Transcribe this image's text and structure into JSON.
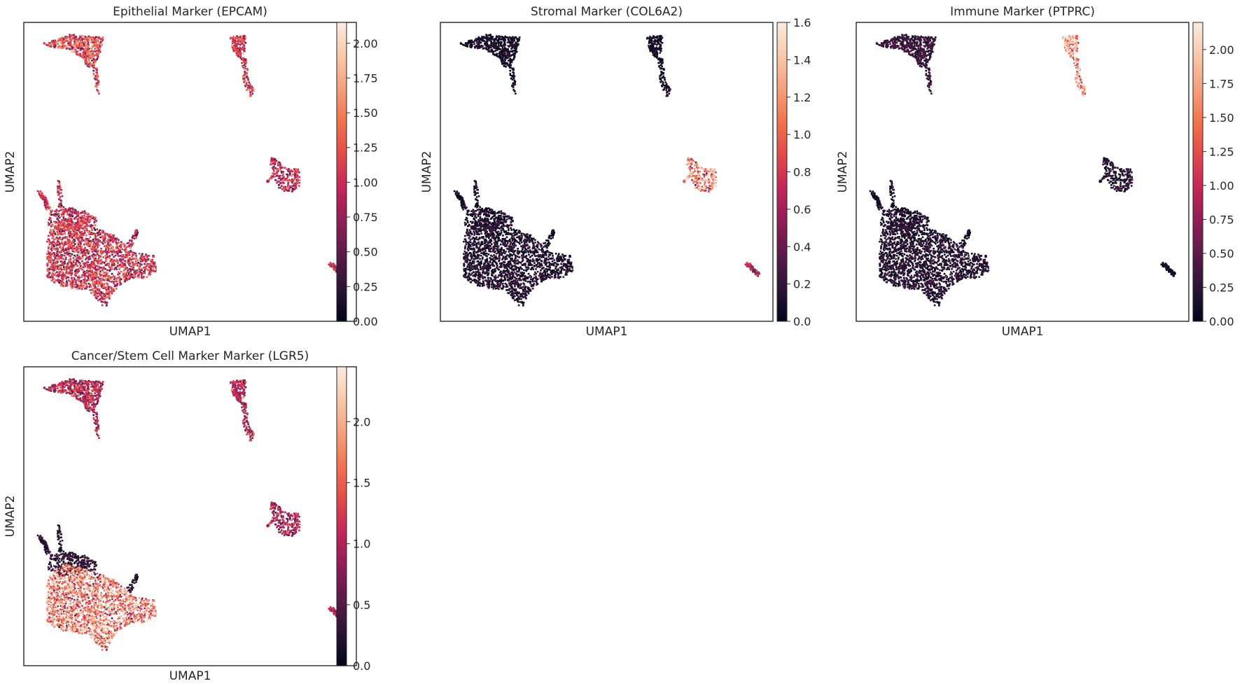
{
  "figure": {
    "background": "#ffffff",
    "colormap": "rocket",
    "colormap_stops": [
      "#03051a",
      "#2b1435",
      "#5a1a48",
      "#8e1d57",
      "#c3245a",
      "#e4484a",
      "#f0734d",
      "#f5a07e",
      "#f8c9aa",
      "#faebdd"
    ]
  },
  "chart_data": [
    {
      "type": "scatter",
      "title": "Epithelial Marker (EPCAM)",
      "xlabel": "UMAP1",
      "ylabel": "UMAP2",
      "colorbar": {
        "min": 0.0,
        "max": 2.15,
        "ticks": [
          0.0,
          0.25,
          0.5,
          0.75,
          1.0,
          1.25,
          1.5,
          1.75,
          2.0
        ],
        "labels": [
          "0.00",
          "0.25",
          "0.50",
          "0.75",
          "1.00",
          "1.25",
          "1.50",
          "1.75",
          "2.00"
        ]
      },
      "cluster_expression": {
        "topleft": 1.05,
        "topmid": 0.95,
        "right": 0.9,
        "big": 0.95,
        "upper_big": 0.9,
        "small": 0.8
      }
    },
    {
      "type": "scatter",
      "title": "Stromal Marker (COL6A2)",
      "xlabel": "UMAP1",
      "ylabel": "UMAP2",
      "colorbar": {
        "min": 0.0,
        "max": 1.6,
        "ticks": [
          0.0,
          0.2,
          0.4,
          0.6,
          0.8,
          1.0,
          1.2,
          1.4,
          1.6
        ],
        "labels": [
          "0.0",
          "0.2",
          "0.4",
          "0.6",
          "0.8",
          "1.0",
          "1.2",
          "1.4",
          "1.6"
        ]
      },
      "cluster_expression": {
        "topleft": 0.05,
        "topmid": 0.05,
        "right": 1.1,
        "big": 0.12,
        "upper_big": 0.08,
        "small": 0.55
      }
    },
    {
      "type": "scatter",
      "title": "Immune Marker (PTPRC)",
      "xlabel": "UMAP1",
      "ylabel": "UMAP2",
      "colorbar": {
        "min": 0.0,
        "max": 2.2,
        "ticks": [
          0.0,
          0.25,
          0.5,
          0.75,
          1.0,
          1.25,
          1.5,
          1.75,
          2.0
        ],
        "labels": [
          "0.00",
          "0.25",
          "0.50",
          "0.75",
          "1.00",
          "1.25",
          "1.50",
          "1.75",
          "2.00"
        ]
      },
      "cluster_expression": {
        "topleft": 0.3,
        "topmid": 1.6,
        "right": 0.25,
        "big": 0.2,
        "upper_big": 0.15,
        "small": 0.05
      }
    },
    {
      "type": "scatter",
      "title": "Cancer/Stem Cell Marker Marker (LGR5)",
      "xlabel": "UMAP1",
      "ylabel": "UMAP2",
      "colorbar": {
        "min": 0.0,
        "max": 2.45,
        "ticks": [
          0.0,
          0.5,
          1.0,
          1.5,
          2.0
        ],
        "labels": [
          "0.0",
          "0.5",
          "1.0",
          "1.5",
          "2.0"
        ]
      },
      "cluster_expression": {
        "topleft": 0.9,
        "topmid": 0.9,
        "right": 0.9,
        "big": 1.6,
        "upper_big": 0.3,
        "small": 0.8
      }
    }
  ]
}
